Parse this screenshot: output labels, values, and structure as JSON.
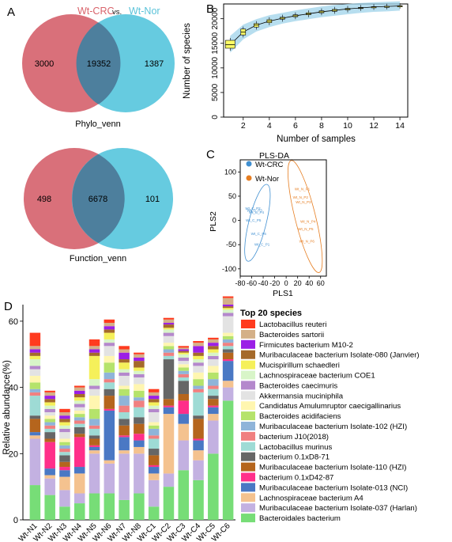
{
  "panel_labels": {
    "a": "A",
    "b": "B",
    "c": "C",
    "d": "D"
  },
  "venn_header": {
    "left": "Wt-CRC",
    "vs": "vs.",
    "right": "Wt-Nor",
    "left_color": "#d9636b",
    "right_color": "#5bc3d9"
  },
  "venn": [
    {
      "left_only": "3000",
      "shared": "19352",
      "right_only": "1387",
      "caption": "Phylo_venn"
    },
    {
      "left_only": "498",
      "shared": "6678",
      "right_only": "101",
      "caption": "Function_venn"
    }
  ],
  "colors": {
    "venn_left": "#d9707a",
    "venn_right": "#66cbe0",
    "venn_overlap": "#4d7f9d",
    "crc": "#3f8fd1",
    "nor": "#e67e22",
    "box": "#ffff66"
  },
  "chart_data": [
    {
      "type": "box",
      "panel": "B",
      "title": "",
      "xlabel": "Number of samples",
      "ylabel": "Number of species",
      "x": [
        1,
        2,
        3,
        4,
        5,
        6,
        7,
        8,
        9,
        10,
        11,
        12,
        13,
        14
      ],
      "median": [
        14700,
        17300,
        18700,
        19500,
        20100,
        20600,
        21000,
        21400,
        21700,
        22000,
        22200,
        22400,
        22500,
        22600
      ],
      "q1": [
        14000,
        16700,
        18300,
        19200,
        19900,
        20400,
        20800,
        21200,
        21500,
        21800,
        22100,
        22300,
        22400,
        22550
      ],
      "q3": [
        15600,
        17900,
        19000,
        19800,
        20300,
        20800,
        21200,
        21600,
        21900,
        22100,
        22300,
        22450,
        22550,
        22650
      ],
      "xticks": [
        "2",
        "4",
        "6",
        "8",
        "10",
        "12",
        "14"
      ],
      "yticks": [
        "0",
        "5000",
        "10000",
        "15000",
        "20000"
      ],
      "xlim": [
        0.5,
        14.6
      ],
      "ylim": [
        0,
        23000
      ]
    },
    {
      "type": "scatter",
      "panel": "C",
      "title": "PLS-DA",
      "xlabel": "PLS1",
      "ylabel": "PLS2",
      "xticks": [
        "-80",
        "-60",
        "-40",
        "-20",
        "0",
        "20",
        "40",
        "60"
      ],
      "yticks": [
        "100",
        "50",
        "0",
        "-50",
        "-100"
      ],
      "xlim": [
        -80,
        70
      ],
      "ylim": [
        -115,
        125
      ],
      "series": [
        {
          "name": "Wt-CRC",
          "labels": [
            "Wt_C_P2",
            "Wt_C_P3",
            "Wt_C_P4",
            "Wt_C_P5",
            "Wt_C_P6",
            "Wt_C_P1"
          ],
          "x": [
            -58,
            -55,
            -52,
            -57,
            -48,
            -42
          ],
          "y": [
            22,
            18,
            14,
            -2,
            -30,
            -52
          ]
        },
        {
          "name": "Wt-Nor",
          "labels": [
            "Wt_N_P1",
            "Wt_N_P2",
            "Wt_N_P3",
            "Wt_N_P4",
            "Wt_N_P5",
            "Wt_N_P6"
          ],
          "x": [
            28,
            25,
            30,
            38,
            34,
            36
          ],
          "y": [
            62,
            45,
            35,
            -5,
            -20,
            -46
          ]
        }
      ]
    },
    {
      "type": "stacked_bar",
      "panel": "D",
      "ylabel": "Relative abundance(%)",
      "legend_title": "Top 20 species",
      "yticks": [
        "0",
        "20",
        "40",
        "60"
      ],
      "ylim": [
        0,
        65
      ],
      "categories": [
        "Wt-N1",
        "Wt-N2",
        "Wt-N3",
        "Wt-N4",
        "Wt-N5",
        "Wt-N6",
        "Wt-N7",
        "Wt-N8",
        "Wt-C1",
        "Wt-C2",
        "Wt-C3",
        "Wt-C4",
        "Wt-C5",
        "Wt-C6"
      ],
      "series": [
        {
          "name": "Bacteroidales bacterium",
          "color": "#77dd77",
          "values": [
            10.5,
            7.5,
            4,
            5,
            8,
            8,
            6,
            8,
            4,
            10,
            15,
            12,
            20,
            36
          ]
        },
        {
          "name": "Muribaculaceae bacterium Isolate-037 (Harlan)",
          "color": "#c3b1e1",
          "values": [
            14,
            5,
            5,
            3,
            12,
            9,
            14,
            12,
            8,
            4,
            9,
            6,
            10,
            4
          ]
        },
        {
          "name": "Lachnospiraceae bacterium A4",
          "color": "#f4c28f",
          "values": [
            1,
            1,
            4,
            6,
            1,
            1,
            1,
            2,
            2,
            18,
            5,
            3,
            2,
            2
          ]
        },
        {
          "name": "Muribaculaceae bacterium Isolate-013 (NCI)",
          "color": "#4a78c4",
          "values": [
            1,
            2,
            2,
            2,
            1,
            15,
            4,
            2,
            2,
            2,
            3,
            3,
            2,
            6
          ]
        },
        {
          "name": "bacterium 0.1xD42-87",
          "color": "#ff2f8a",
          "values": [
            0,
            8,
            1,
            9,
            0.5,
            0.5,
            0.5,
            2,
            0.5,
            0.5,
            4,
            0.5,
            0.5,
            0.5
          ]
        },
        {
          "name": "Muribaculaceae bacterium Isolate-110 (HZI)",
          "color": "#b5651d",
          "values": [
            4,
            1,
            1.5,
            1,
            2,
            4,
            3,
            3,
            3,
            2,
            2,
            6,
            2,
            2
          ]
        },
        {
          "name": "bacterium 0.1xD8-71",
          "color": "#666666",
          "values": [
            1,
            2,
            2,
            2,
            1,
            2,
            2,
            2,
            2,
            12,
            4,
            1,
            1,
            1
          ]
        },
        {
          "name": "Lactobacillus murinus",
          "color": "#9edbd5",
          "values": [
            6,
            1,
            1,
            1,
            2,
            2,
            2,
            3,
            3,
            1,
            1,
            7,
            2,
            1
          ]
        },
        {
          "name": "bacterium J10(2018)",
          "color": "#f08080",
          "values": [
            1,
            1,
            1,
            1,
            1,
            1,
            2,
            2,
            1,
            1,
            1,
            1,
            1,
            1
          ]
        },
        {
          "name": "Muribaculaceae bacterium Isolate-102 (HZI)",
          "color": "#8fb4d9",
          "values": [
            1,
            1,
            1,
            1,
            2,
            2,
            3,
            1,
            2,
            1,
            1,
            1,
            2,
            1
          ]
        },
        {
          "name": "Bacteroides acidifaciens",
          "color": "#b5e36b",
          "values": [
            2,
            1,
            1,
            1,
            3,
            3,
            2,
            2,
            1,
            1,
            1,
            2,
            2,
            1
          ]
        },
        {
          "name": "Candidatus Amulumruptor caecigallinarius",
          "color": "#fff6b0",
          "values": [
            2,
            1,
            1,
            1,
            4,
            2,
            1,
            2,
            1,
            1,
            1,
            2,
            2,
            1
          ]
        },
        {
          "name": "Akkermansia muciniphila",
          "color": "#e3e3e3",
          "values": [
            2,
            1,
            2,
            1,
            2,
            3,
            3,
            2,
            3,
            2,
            1,
            2,
            2,
            5
          ]
        },
        {
          "name": "Bacteroides caecimuris",
          "color": "#b488cc",
          "values": [
            1,
            1,
            1,
            1,
            1,
            1,
            1,
            1,
            1,
            1,
            1,
            1,
            1,
            1
          ]
        },
        {
          "name": "Lachnospiraceae bacterium COE1",
          "color": "#d8f5c8",
          "values": [
            2,
            1,
            1,
            1,
            2,
            1,
            1,
            1,
            1,
            1,
            1,
            1,
            1,
            1
          ]
        },
        {
          "name": "Mucispirillum schaedleri",
          "color": "#f5f05a",
          "values": [
            1,
            1,
            1,
            1,
            7,
            2,
            2,
            1,
            1,
            0.5,
            0.5,
            1,
            1,
            0.5
          ]
        },
        {
          "name": "Muribaculaceae bacterium Isolate-080 (Janvier)",
          "color": "#a56a2b",
          "values": [
            1,
            1,
            1,
            1,
            1,
            1,
            1,
            2,
            1,
            1,
            0.5,
            1,
            1,
            0.5
          ]
        },
        {
          "name": "Firmicutes bacterium M10-2",
          "color": "#9b1fe6",
          "values": [
            1,
            1,
            1,
            1,
            1,
            1,
            2,
            1,
            1,
            0.5,
            0.5,
            2,
            1,
            0.5
          ]
        },
        {
          "name": "Bacteroides sartorii",
          "color": "#d4b088",
          "values": [
            1,
            1,
            1,
            1,
            1,
            1,
            1,
            1,
            1,
            1,
            0.5,
            1,
            1,
            2
          ]
        },
        {
          "name": "Lactobacillus reuteri",
          "color": "#ff3b1f",
          "values": [
            4,
            0.5,
            1,
            0.5,
            2,
            1,
            1,
            0.5,
            1,
            0.5,
            0.5,
            0.5,
            0.5,
            0.5
          ]
        }
      ]
    }
  ]
}
